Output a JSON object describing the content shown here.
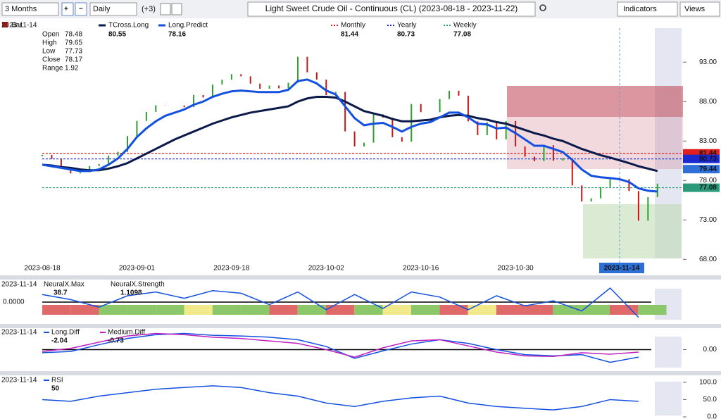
{
  "toolbar": {
    "period": "3 Months",
    "interval": "Daily",
    "offset": "(+3)",
    "title": "Light Sweet Crude Oil - Continuous (CL) (2023-08-18 - 2023-11-22)",
    "indicators": "Indicators",
    "views": "Views"
  },
  "chart_data": [
    {
      "type": "price",
      "cursor_date": "2023-11-14",
      "info": {
        "label": "Bar",
        "fields": [
          {
            "name": "Open",
            "value": 78.48
          },
          {
            "name": "High",
            "value": 79.65
          },
          {
            "name": "Low",
            "value": 77.73
          },
          {
            "name": "Close",
            "value": 78.17
          },
          {
            "name": "Range",
            "value": 1.92
          }
        ]
      },
      "categories": [
        "2023-08-18",
        null,
        null,
        null,
        null,
        null,
        null,
        null,
        null,
        null,
        "2023-09-01",
        null,
        null,
        null,
        null,
        null,
        null,
        null,
        null,
        null,
        "2023-09-18",
        null,
        null,
        null,
        null,
        null,
        null,
        null,
        null,
        null,
        "2023-10-02",
        null,
        null,
        null,
        null,
        null,
        null,
        null,
        null,
        null,
        "2023-10-16",
        null,
        null,
        null,
        null,
        null,
        null,
        null,
        null,
        null,
        "2023-10-30",
        null,
        null,
        null,
        null,
        null,
        null,
        null,
        null,
        null,
        null,
        null,
        null,
        null,
        null,
        null
      ],
      "closes": [
        81.25,
        80.72,
        79.64,
        78.89,
        79.05,
        79.83,
        80.1,
        81.16,
        81.63,
        83.63,
        85.55,
        86.69,
        87.54,
        87.51,
        87.51,
        87.29,
        88.84,
        88.52,
        90.16,
        90.77,
        91.48,
        91.2,
        90.28,
        89.63,
        90.03,
        89.68,
        90.39,
        93.68,
        91.71,
        90.79,
        88.82,
        89.23,
        84.22,
        82.31,
        82.79,
        86.38,
        85.97,
        83.49,
        82.91,
        87.69,
        86.66,
        86.66,
        88.32,
        89.37,
        88.75,
        85.49,
        83.74,
        85.39,
        83.21,
        85.54,
        82.31,
        81.02,
        80.44,
        82.46,
        80.51,
        80.82,
        77.37,
        75.33,
        75.74,
        77.17,
        78.26,
        78.17,
        76.66,
        72.9,
        75.89,
        77.6
      ],
      "up_color": "#2e9e2e",
      "down_color": "#c01818",
      "series": [
        {
          "name": "TCross.Long",
          "color": "#0a1a4a",
          "legend_value": 80.55,
          "values": [
            80.0,
            79.9,
            79.7,
            79.6,
            79.4,
            79.3,
            79.3,
            79.5,
            79.8,
            80.2,
            80.8,
            81.4,
            82.0,
            82.6,
            83.2,
            83.7,
            84.2,
            84.7,
            85.2,
            85.6,
            86.0,
            86.3,
            86.6,
            86.8,
            87.0,
            87.2,
            87.4,
            88.0,
            88.4,
            88.6,
            88.6,
            88.5,
            88.0,
            87.4,
            86.8,
            86.5,
            86.2,
            85.8,
            85.5,
            85.5,
            85.6,
            85.7,
            86.0,
            86.2,
            86.3,
            86.2,
            85.9,
            85.7,
            85.4,
            85.2,
            84.8,
            84.4,
            84.0,
            83.7,
            83.3,
            83.0,
            82.5,
            82.0,
            81.6,
            81.2,
            80.9,
            80.55,
            80.2,
            79.8,
            79.5,
            79.2
          ]
        },
        {
          "name": "Long.Predict",
          "color": "#1450e0",
          "legend_value": 78.16,
          "values": [
            80.0,
            79.8,
            79.6,
            79.4,
            79.2,
            79.2,
            79.4,
            80.0,
            80.8,
            82.0,
            83.5,
            84.6,
            85.5,
            86.2,
            86.6,
            87.0,
            87.6,
            88.0,
            88.6,
            89.0,
            89.3,
            89.4,
            89.3,
            89.2,
            89.2,
            89.2,
            89.5,
            90.6,
            90.8,
            90.3,
            89.4,
            88.9,
            87.4,
            85.9,
            85.0,
            85.2,
            85.3,
            84.8,
            84.2,
            84.8,
            85.2,
            85.4,
            86.0,
            86.6,
            86.6,
            86.0,
            85.2,
            85.1,
            84.6,
            84.7,
            84.0,
            83.2,
            82.4,
            82.4,
            82.0,
            81.6,
            80.6,
            79.4,
            78.6,
            78.4,
            78.3,
            78.16,
            77.8,
            77.0,
            76.7,
            76.6
          ]
        }
      ],
      "levels": [
        {
          "name": "Monthly",
          "color": "#e02020",
          "value": 81.44
        },
        {
          "name": "Yearly",
          "color": "#1a2ad0",
          "value": 80.73
        },
        {
          "name": "Weekly",
          "color": "#2a9a7a",
          "value": 77.08
        }
      ],
      "price_label": {
        "value": 79.44,
        "color": "#2f6fd6"
      },
      "ylim": [
        67.4,
        98.2
      ],
      "yticks": [
        {
          "value": 93,
          "label": "93.00"
        },
        {
          "value": 88,
          "label": "88.00"
        },
        {
          "value": 83,
          "label": "83.00"
        },
        {
          "value": 78,
          "label": "78.00"
        },
        {
          "value": 73,
          "label": "73.00"
        },
        {
          "value": 68,
          "label": "68.00"
        }
      ]
    },
    {
      "type": "neural",
      "cursor_date": "2023-11-14",
      "legend": [
        {
          "name": "NeuralX.Max",
          "value": 38.7
        },
        {
          "name": "NeuralX.Strength",
          "value": 1.1098
        }
      ],
      "series": [
        {
          "name": "NeuralX.Strength",
          "color": "#1450e0",
          "values": [
            0.6,
            0.2,
            -0.4,
            0.5,
            0.8,
            0.3,
            0.9,
            0.7,
            -0.2,
            0.8,
            -0.6,
            0.6,
            -0.5,
            0.8,
            0.4,
            -0.6,
            0.5,
            -0.3,
            0.1,
            -0.7,
            1.1098,
            -1.2
          ]
        }
      ],
      "strip_colors": [
        "#e06a6a",
        "#e06a6a",
        "#8cc86a",
        "#8cc86a",
        "#8cc86a",
        "#f2ea8a",
        "#8cc86a",
        "#8cc86a",
        "#e06a6a",
        "#8cc86a",
        "#e06a6a",
        "#8cc86a",
        "#f2ea8a",
        "#8cc86a",
        "#e06a6a",
        "#f2ea8a",
        "#e06a6a",
        "#e06a6a",
        "#8cc86a",
        "#8cc86a",
        "#e06a6a",
        "#8cc86a"
      ],
      "ylim": [
        -1.5,
        1.5
      ],
      "yticks": [
        {
          "value": 0,
          "label": "0.0000"
        }
      ]
    },
    {
      "type": "diff",
      "cursor_date": "2023-11-14",
      "series": [
        {
          "name": "Long.Diff",
          "color": "#1450e0",
          "legend_value": -2.04,
          "values": [
            -0.5,
            -0.3,
            0.8,
            1.8,
            2.4,
            2.6,
            2.3,
            2.2,
            2.0,
            1.6,
            0.5,
            -1.4,
            -0.2,
            0.9,
            1.6,
            1.0,
            0.0,
            -0.8,
            -1.0,
            -0.8,
            -2.04,
            -1.2
          ]
        },
        {
          "name": "Medium.Diff",
          "color": "#c020c0",
          "legend_value": -0.73,
          "values": [
            -0.3,
            0.2,
            1.2,
            2.2,
            2.6,
            2.4,
            2.0,
            1.8,
            1.4,
            1.0,
            0.0,
            -1.2,
            0.3,
            1.4,
            1.6,
            0.6,
            -0.4,
            -1.0,
            -1.1,
            -0.5,
            -0.73,
            -0.4
          ]
        }
      ],
      "ylim": [
        -3,
        3
      ],
      "yticks": [
        {
          "value": 0,
          "label": "0.00"
        }
      ]
    },
    {
      "type": "rsi",
      "cursor_date": "2023-11-14",
      "series": [
        {
          "name": "RSI",
          "color": "#1450e0",
          "legend_value": 50.0,
          "values": [
            50,
            45,
            60,
            70,
            80,
            85,
            90,
            85,
            70,
            60,
            40,
            30,
            45,
            55,
            60,
            40,
            30,
            25,
            20,
            30,
            50,
            45
          ]
        }
      ],
      "ylim": [
        0,
        110
      ],
      "yticks": [
        {
          "value": 100,
          "label": "100.0"
        },
        {
          "value": 50,
          "label": "50.0"
        },
        {
          "value": 0,
          "label": "0.0"
        }
      ]
    }
  ]
}
